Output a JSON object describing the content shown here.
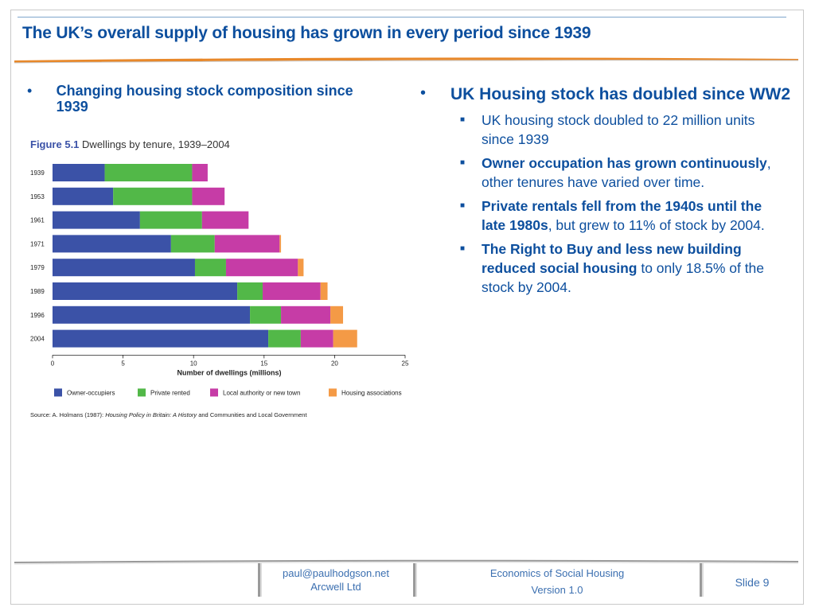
{
  "slide": {
    "title": "The UK’s overall supply of housing has grown in every period since 1939",
    "left_bullet": "Changing housing stock composition since 1939",
    "right": {
      "heading": "UK Housing stock has doubled since WW2",
      "subs": [
        {
          "bold": "",
          "text": "UK housing stock doubled to 22 million units since 1939"
        },
        {
          "bold": "Owner occupation has grown continuously",
          "text": ", other tenures have varied over time."
        },
        {
          "bold": "Private rentals fell from the 1940s until the late 1980s",
          "text": ", but grew to 11% of stock by 2004."
        },
        {
          "bold": "The Right to Buy and less new building reduced social housing",
          "text": " to only 18.5% of the stock by 2004."
        }
      ]
    },
    "footer": {
      "email": "paul@paulhodgson.net",
      "company": "Arcwell Ltd",
      "course": "Economics of Social Housing",
      "version": "Version 1.0",
      "slide_no": "Slide 9"
    }
  },
  "chart_data": {
    "type": "bar",
    "orientation": "horizontal",
    "stacked": true,
    "figure_label": "Figure 5.1",
    "title": "Dwellings by tenure, 1939–2004",
    "xlabel": "Number of dwellings (millions)",
    "xlim": [
      0,
      25
    ],
    "xticks": [
      "0",
      "5",
      "10",
      "15",
      "20",
      "25"
    ],
    "categories": [
      "1939",
      "1953",
      "1961",
      "1971",
      "1979",
      "1989",
      "1996",
      "2004"
    ],
    "series": [
      {
        "name": "Owner-occupiers",
        "color": "#3b52a7",
        "values": [
          3.7,
          4.3,
          6.2,
          8.4,
          10.1,
          13.1,
          14.0,
          15.3
        ]
      },
      {
        "name": "Private rented",
        "color": "#52b848",
        "values": [
          6.2,
          5.6,
          4.4,
          3.1,
          2.2,
          1.8,
          2.2,
          2.3
        ]
      },
      {
        "name": "Local authority or new town",
        "color": "#c63ca6",
        "values": [
          1.1,
          2.3,
          3.3,
          4.6,
          5.1,
          4.1,
          3.5,
          2.3
        ]
      },
      {
        "name": "Housing associations",
        "color": "#f49a46",
        "values": [
          0.0,
          0.0,
          0.0,
          0.1,
          0.4,
          0.5,
          0.9,
          1.7
        ]
      }
    ],
    "source_prefix": "Source: A. Holmans (1987): ",
    "source_title": "Housing Policy in Britain: A History",
    "source_suffix": " and Communities and Local Government",
    "grid": false,
    "legend_position": "bottom"
  }
}
